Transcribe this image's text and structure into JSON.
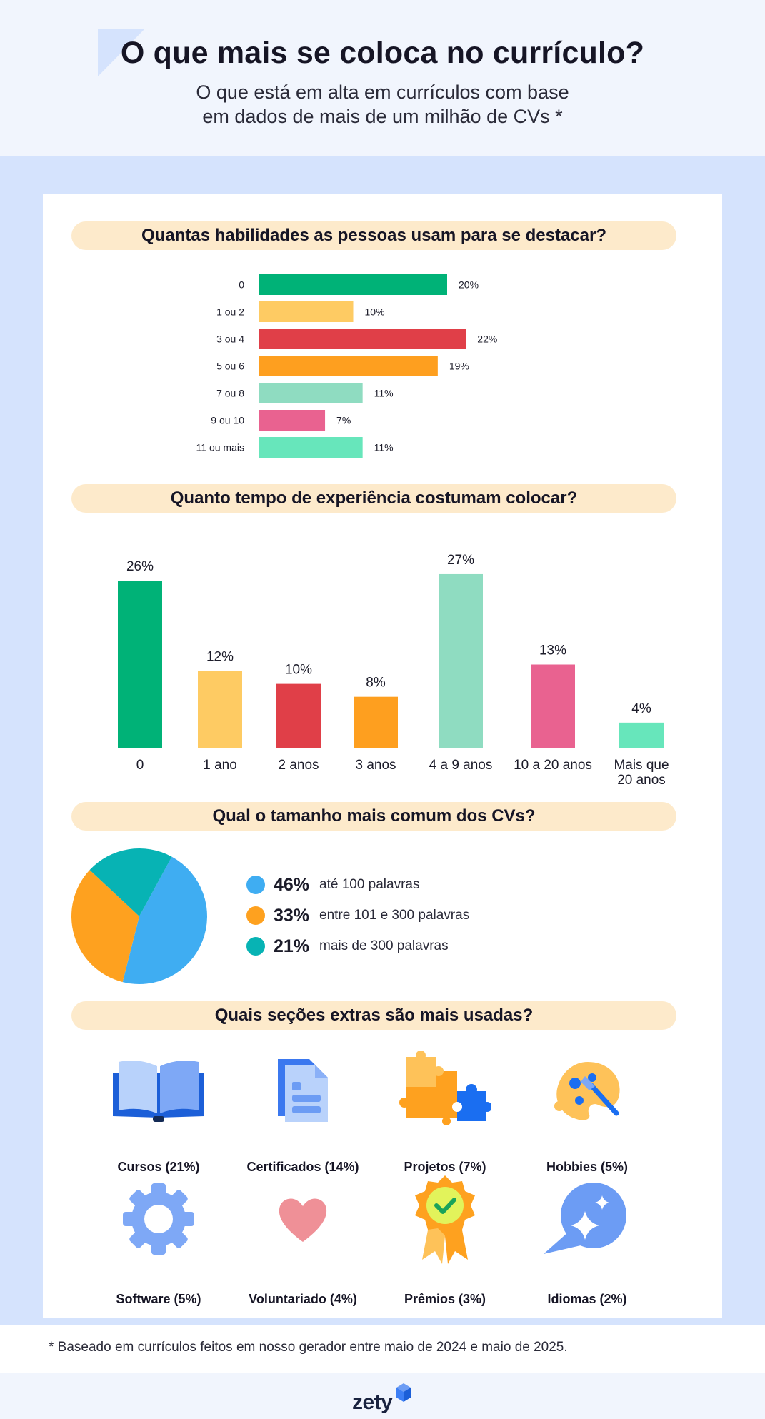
{
  "header": {
    "title": "O que mais se coloca no currículo?",
    "subtitle_line1": "O que está em alta em currículos com base",
    "subtitle_line2": "em dados de mais de um milhão de CVs *"
  },
  "sections": {
    "skills_title": "Quantas habilidades as pessoas usam para se destacar?",
    "experience_title": "Quanto tempo de experiência costumam colocar?",
    "size_title": "Qual o tamanho mais comum dos CVs?",
    "extras_title": "Quais seções extras são mais usadas?"
  },
  "chart_data": [
    {
      "type": "bar",
      "orientation": "horizontal",
      "title": "Quantas habilidades as pessoas usam para se destacar?",
      "categories": [
        "0",
        "1 ou 2",
        "3 ou 4",
        "5 ou 6",
        "7 ou 8",
        "9 ou 10",
        "11 ou mais"
      ],
      "values": [
        20,
        10,
        22,
        19,
        11,
        7,
        11
      ],
      "labels": [
        "20%",
        "10%",
        "22%",
        "19%",
        "11%",
        "7%",
        "11%"
      ],
      "colors": [
        "#00b277",
        "#fecb63",
        "#e03f48",
        "#fe9f1f",
        "#8fdcc1",
        "#e96290",
        "#67e6bb"
      ],
      "unit": "%"
    },
    {
      "type": "bar",
      "orientation": "vertical",
      "title": "Quanto tempo de experiência costumam colocar?",
      "categories": [
        "0",
        "1 ano",
        "2 anos",
        "3 anos",
        "4 a 9 anos",
        "10 a 20 anos",
        "Mais que 20 anos"
      ],
      "category_lines": [
        [
          "0"
        ],
        [
          "1 ano"
        ],
        [
          "2 anos"
        ],
        [
          "3 anos"
        ],
        [
          "4 a 9 anos"
        ],
        [
          "10 a 20 anos"
        ],
        [
          "Mais que",
          "20 anos"
        ]
      ],
      "values": [
        26,
        12,
        10,
        8,
        27,
        13,
        4
      ],
      "labels": [
        "26%",
        "12%",
        "10%",
        "8%",
        "27%",
        "13%",
        "4%"
      ],
      "colors": [
        "#00b277",
        "#fecb63",
        "#e03f48",
        "#fe9f1f",
        "#8fdcc1",
        "#e96290",
        "#67e6bb"
      ],
      "unit": "%"
    },
    {
      "type": "pie",
      "title": "Qual o tamanho mais comum dos CVs?",
      "categories": [
        "até 100 palavras",
        "entre 101 e 300 palavras",
        "mais de 300 palavras"
      ],
      "values": [
        46,
        33,
        21
      ],
      "labels": [
        "46%",
        "33%",
        "21%"
      ],
      "colors": [
        "#3fadf2",
        "#fea11f",
        "#07b3b4"
      ]
    }
  ],
  "extras": [
    {
      "label": "Cursos (21%)",
      "icon": "book-icon"
    },
    {
      "label": "Certificados (14%)",
      "icon": "document-icon"
    },
    {
      "label": "Projetos (7%)",
      "icon": "puzzle-icon"
    },
    {
      "label": "Hobbies (5%)",
      "icon": "palette-icon"
    },
    {
      "label": "Software (5%)",
      "icon": "gear-icon"
    },
    {
      "label": "Voluntariado (4%)",
      "icon": "heart-icon"
    },
    {
      "label": "Prêmios (3%)",
      "icon": "award-icon"
    },
    {
      "label": "Idiomas (2%)",
      "icon": "speech-bubble-icon"
    }
  ],
  "footnote": "* Baseado em currículos feitos em nosso gerador entre maio de 2024 e maio de 2025.",
  "brand": {
    "name": "zety",
    "accent": "#3d7ff5"
  }
}
